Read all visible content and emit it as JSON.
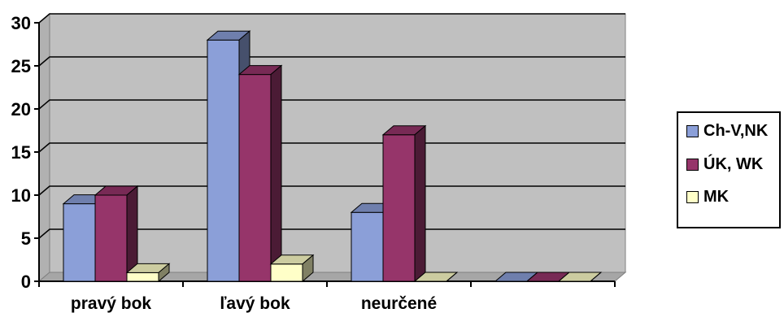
{
  "chart_data": {
    "type": "bar",
    "categories": [
      "pravý bok",
      "ľavý bok",
      "neurčené",
      ""
    ],
    "series": [
      {
        "name": "Ch-V,NK",
        "values": [
          9,
          28,
          8,
          0
        ],
        "color": "#8b9fd8"
      },
      {
        "name": "ÚK, WK",
        "values": [
          10,
          24,
          17,
          0
        ],
        "color": "#96356a"
      },
      {
        "name": "MK",
        "values": [
          1,
          2,
          0,
          0
        ],
        "color": "#ffffc8"
      }
    ],
    "y_ticks": [
      "0",
      "5",
      "10",
      "15",
      "20",
      "25",
      "30"
    ],
    "ylim": [
      0,
      30
    ],
    "grid": true,
    "legend_position": "right",
    "colors": {
      "wall": "#c0c0c0",
      "floor": "#a6a6a6"
    }
  }
}
